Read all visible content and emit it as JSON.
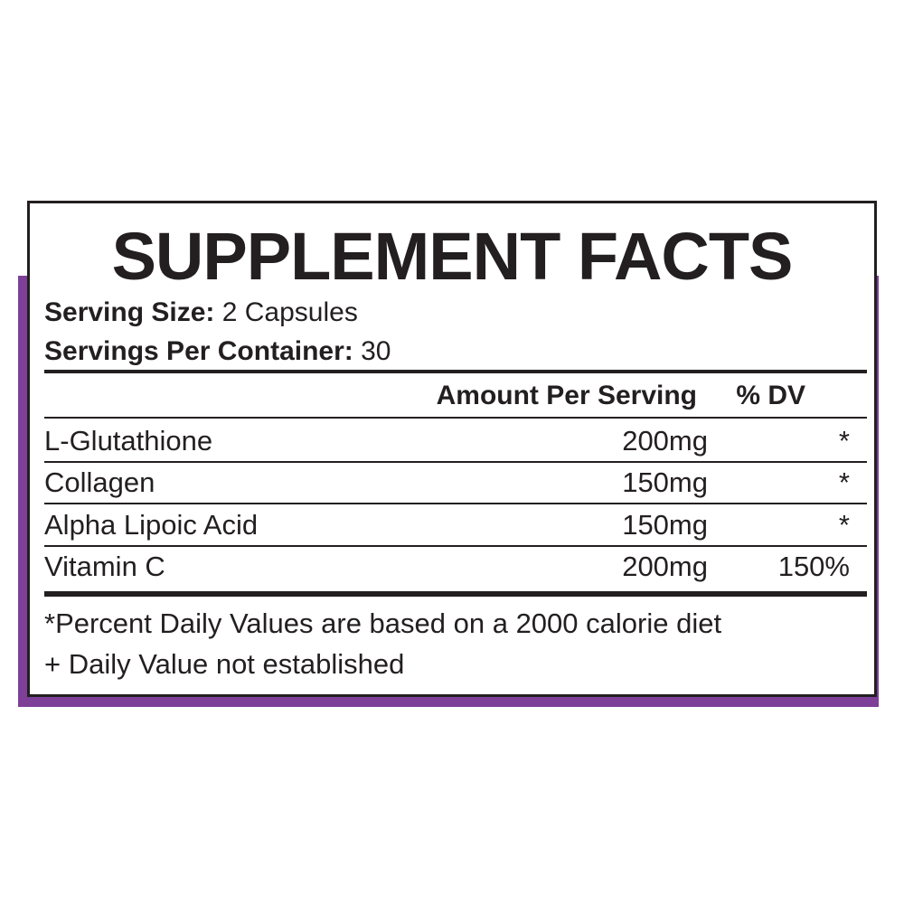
{
  "title": "SUPPLEMENT FACTS",
  "serving_size": {
    "label": "Serving Size:",
    "value": "2 Capsules"
  },
  "servings_per_container": {
    "label": "Servings Per Container:",
    "value": "30"
  },
  "table": {
    "headers": [
      "Amount Per Serving",
      "% DV"
    ],
    "rows": [
      [
        "L-Glutathione",
        "200mg",
        "*"
      ],
      [
        "Collagen",
        "150mg",
        "*"
      ],
      [
        "Alpha Lipoic Acid",
        "150mg",
        "*"
      ],
      [
        "Vitamin C",
        "200mg",
        "150%"
      ]
    ]
  },
  "footnotes": [
    "*Percent Daily Values are based on a 2000 calorie diet",
    "+ Daily Value not established"
  ]
}
